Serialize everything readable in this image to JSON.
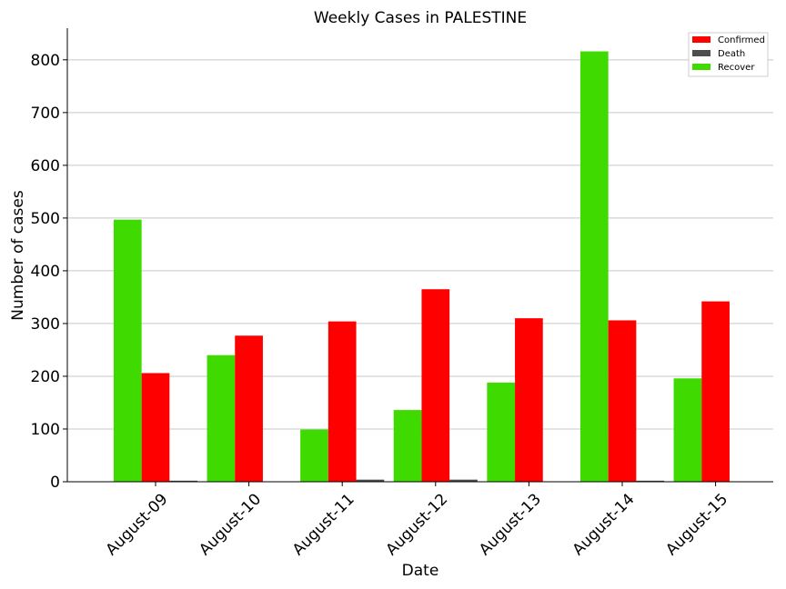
{
  "chart_data": {
    "type": "bar",
    "title": "Weekly Cases in PALESTINE",
    "xlabel": "Date",
    "ylabel": "Number of cases",
    "categories": [
      "August-09",
      "August-10",
      "August-11",
      "August-12",
      "August-13",
      "August-14",
      "August-15"
    ],
    "ylim": [
      0,
      860
    ],
    "yticks": [
      0,
      100,
      200,
      300,
      400,
      500,
      600,
      700,
      800
    ],
    "grid": "horizontal",
    "legend_position": "top-right",
    "bar_order": [
      "Recover",
      "Confirmed",
      "Death"
    ],
    "series": [
      {
        "name": "Confirmed",
        "color": "#ff0000",
        "values": [
          206,
          277,
          304,
          365,
          310,
          306,
          342
        ]
      },
      {
        "name": "Death",
        "color": "#4d4d4d",
        "values": [
          2,
          0,
          4,
          4,
          0,
          2,
          0
        ]
      },
      {
        "name": "Recover",
        "color": "#3fdb00",
        "values": [
          497,
          240,
          99,
          136,
          188,
          816,
          196
        ]
      }
    ]
  }
}
